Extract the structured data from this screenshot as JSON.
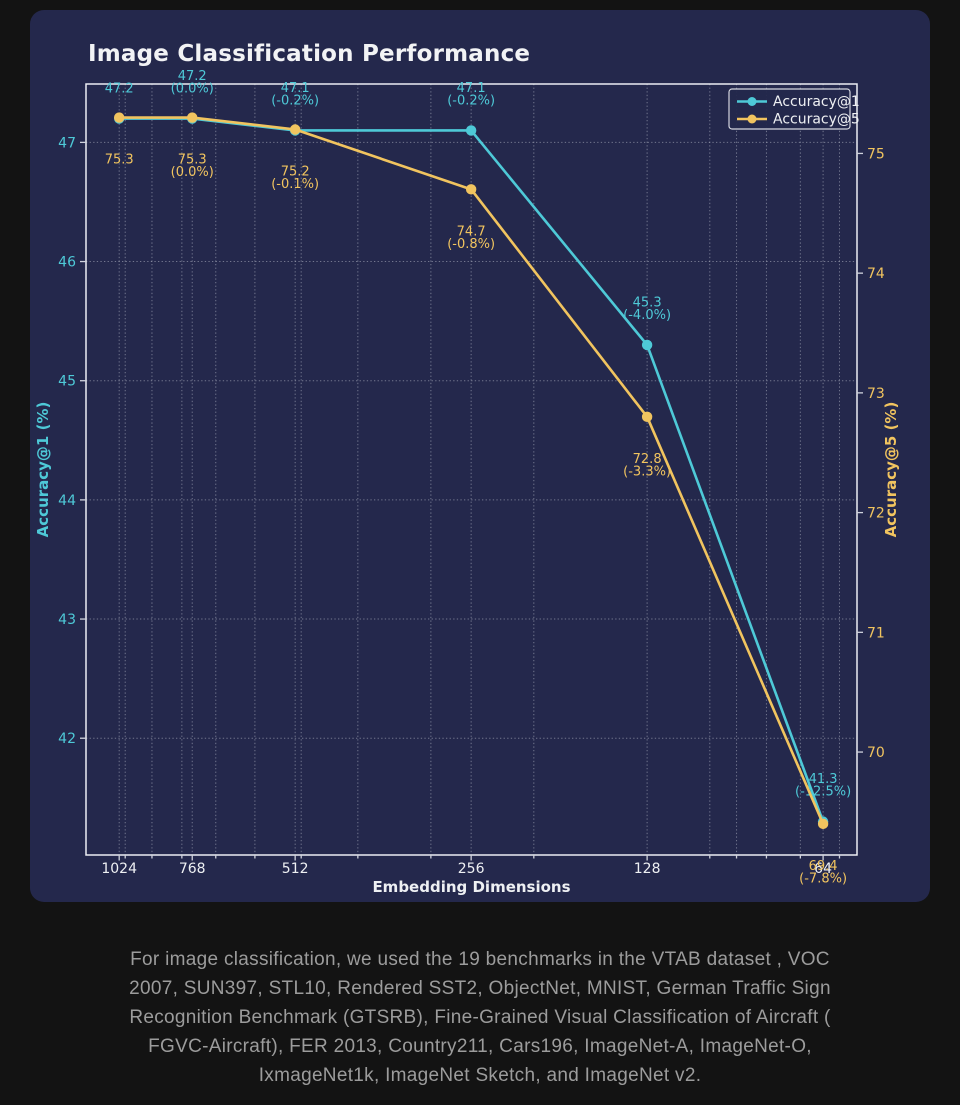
{
  "page": {
    "background": "#131313"
  },
  "card": {
    "background": "#24284c"
  },
  "chart_data": {
    "type": "line",
    "title": "Image Classification Performance",
    "title_color": "#f2f3f5",
    "x_axis": {
      "label": "Embedding Dimensions",
      "scale": "log2-reversed",
      "range": [
        1167,
        56
      ],
      "tick_values": [
        1024,
        768,
        512,
        256,
        128,
        64
      ],
      "tick_labels": [
        "1024",
        "768",
        "512",
        "256",
        "128",
        "64"
      ],
      "minor_gridlines": [
        1000,
        900,
        800,
        700,
        600,
        500,
        400,
        300,
        200,
        100,
        90,
        80,
        70,
        60
      ],
      "text_color": "#eef0f3"
    },
    "left_axis": {
      "label": "Accuracy@1 (%)",
      "color": "#4ec9d7",
      "ticks": [
        47,
        46,
        45,
        44,
        43,
        42
      ],
      "range": [
        41.02,
        47.49
      ]
    },
    "right_axis": {
      "label": "Accuracy@5 (%)",
      "color": "#f1c45f",
      "ticks": [
        75,
        74,
        73,
        72,
        71,
        70
      ],
      "range": [
        69.14,
        75.58
      ]
    },
    "grid": {
      "color": "#c2c5d2",
      "opacity": 0.5,
      "style": "dotted"
    },
    "spine_color": "#eceef3",
    "series": [
      {
        "name": "Accuracy@1",
        "axis": "left",
        "color": "#4ec9d7",
        "x": [
          1024,
          768,
          512,
          256,
          128,
          64
        ],
        "values": [
          47.2,
          47.2,
          47.1,
          47.1,
          45.3,
          41.3
        ],
        "point_labels": [
          [
            "47.2"
          ],
          [
            "47.2",
            "(0.0%)"
          ],
          [
            "47.1",
            "(-0.2%)"
          ],
          [
            "47.1",
            "(-0.2%)"
          ],
          [
            "45.3",
            "(-4.0%)"
          ],
          [
            "41.3",
            "(-12.5%)"
          ]
        ],
        "label_side": "above"
      },
      {
        "name": "Accuracy@5",
        "axis": "right",
        "color": "#f1c45f",
        "x": [
          1024,
          768,
          512,
          256,
          128,
          64
        ],
        "values": [
          75.3,
          75.3,
          75.2,
          74.7,
          72.8,
          69.4
        ],
        "point_labels": [
          [
            "75.3"
          ],
          [
            "75.3",
            "(0.0%)"
          ],
          [
            "75.2",
            "(-0.1%)"
          ],
          [
            "74.7",
            "(-0.8%)"
          ],
          [
            "72.8",
            "(-3.3%)"
          ],
          [
            "69.4",
            "(-7.8%)"
          ]
        ],
        "label_side": "below"
      }
    ],
    "legend": {
      "position": "top-right",
      "entries": [
        "Accuracy@1",
        "Accuracy@5"
      ],
      "text_color": "#eef0f3",
      "border_color": "#d4d6de"
    }
  },
  "caption": {
    "color": "#9c9c9c",
    "lines": [
      "For image classification, we used the 19 benchmarks in the VTAB dataset , VOC",
      "2007, SUN397, STL10, Rendered SST2, ObjectNet, MNIST, German Traffic Sign",
      "Recognition Benchmark (GTSRB), Fine-Grained Visual Classification of Aircraft (",
      "FGVC-Aircraft), FER 2013, Country211, Cars196, ImageNet-A, ImageNet-O,",
      "IxmageNet1k, ImageNet Sketch, and ImageNet v2."
    ]
  }
}
